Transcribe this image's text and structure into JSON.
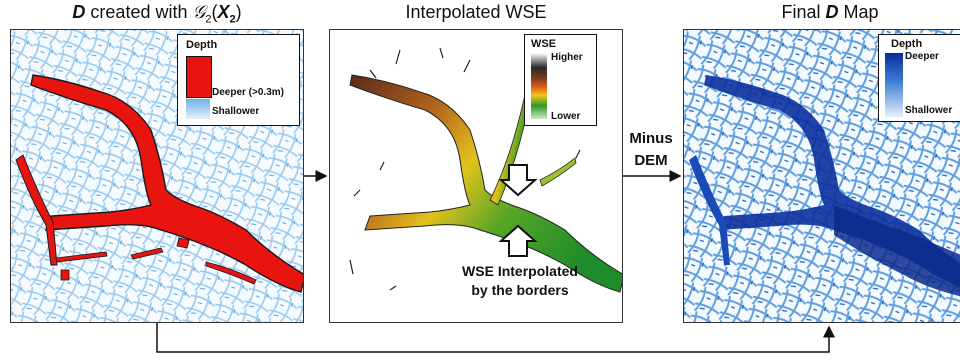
{
  "titles": {
    "panel1_prefix": "D",
    "panel1_middle": " created with ",
    "panel1_func": "𝒢",
    "panel1_func_sub": "2",
    "panel1_arg": "X",
    "panel1_arg_sub": "2",
    "panel2": "Interpolated WSE",
    "panel3_pre": "Final ",
    "panel3_bold": "D",
    "panel3_post": " Map"
  },
  "legend_depth_red": {
    "title": "Depth",
    "deeper": "Deeper (>0.3m)",
    "shallower": "Shallower",
    "deep_color": "#e8140f",
    "shallow_color": "#a8d0f0"
  },
  "legend_wse": {
    "title": "WSE",
    "higher": "Higher",
    "lower": "Lower"
  },
  "legend_depth_blue": {
    "title": "Depth",
    "deeper": "Deeper",
    "shallower": "Shallower",
    "deep_color": "#0a2a9a",
    "shallow_color": "#e6f0fb"
  },
  "annotations": {
    "minus_line1": "Minus",
    "minus_line2": "DEM",
    "wse_line1": "WSE Interpolated",
    "wse_line2": "by the borders"
  }
}
